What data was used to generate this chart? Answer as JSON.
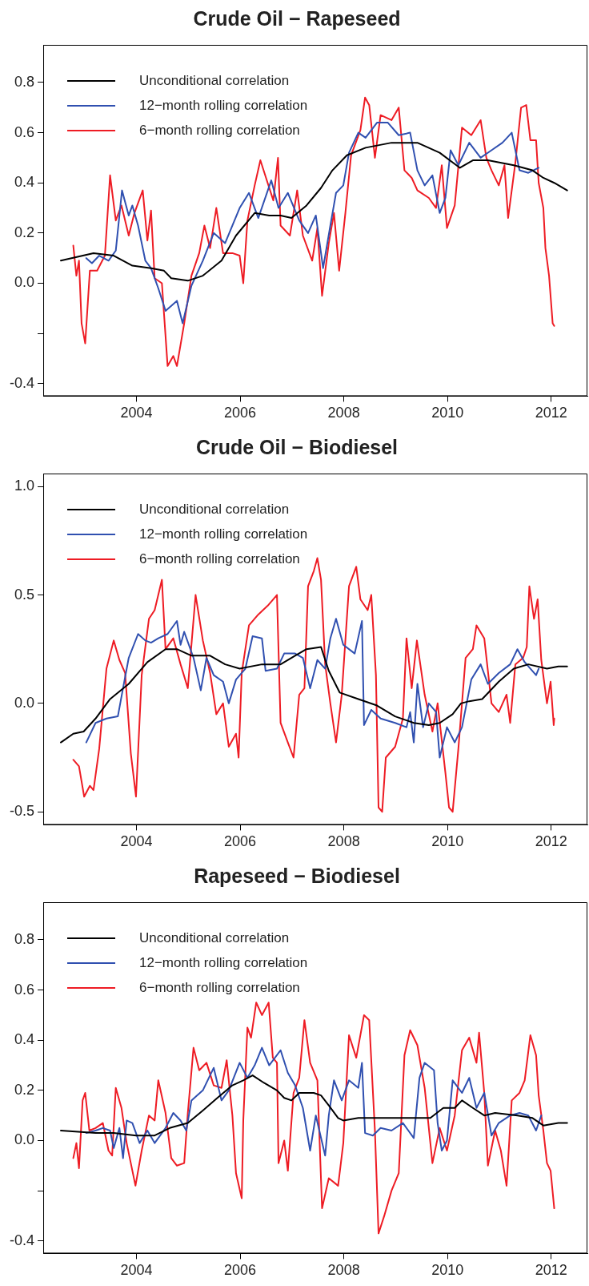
{
  "chart_data": [
    {
      "type": "line",
      "title": "Crude Oil − Rapeseed",
      "xlim": [
        2002.2,
        2012.7
      ],
      "xticks": [
        2004,
        2006,
        2008,
        2010,
        2012
      ],
      "ylim": [
        -0.45,
        0.95
      ],
      "yticks": [
        -0.4,
        {
          "value": -0.2,
          "label": null
        },
        {
          "value": 0,
          "label": "0.0"
        },
        0.2,
        0.4,
        0.6,
        0.8
      ],
      "grid": false,
      "legend": "top left",
      "marker": "none",
      "line_style": "solid",
      "series": [
        {
          "name": "Unconditional correlation",
          "color": "#000000",
          "x": [
            2002.54,
            2003.17,
            2003.56,
            2003.92,
            2004.28,
            2004.53,
            2004.67,
            2004.99,
            2005.28,
            2005.64,
            2005.92,
            2006.28,
            2006.56,
            2006.78,
            2006.99,
            2007.28,
            2007.56,
            2007.78,
            2008.06,
            2008.42,
            2008.92,
            2009.42,
            2009.85,
            2010.24,
            2010.49,
            2010.78,
            2011.28,
            2011.64,
            2011.85,
            2012.06,
            2012.31
          ],
          "values": [
            0.09,
            0.12,
            0.11,
            0.07,
            0.06,
            0.05,
            0.02,
            0.01,
            0.03,
            0.09,
            0.19,
            0.28,
            0.27,
            0.27,
            0.26,
            0.31,
            0.38,
            0.45,
            0.51,
            0.54,
            0.56,
            0.56,
            0.52,
            0.46,
            0.49,
            0.49,
            0.47,
            0.45,
            0.42,
            0.4,
            0.37
          ]
        },
        {
          "name": "12−month rolling correlation",
          "color": "#3050b0",
          "x": [
            2003.03,
            2003.14,
            2003.28,
            2003.46,
            2003.6,
            2003.72,
            2003.85,
            2003.92,
            2004.03,
            2004.17,
            2004.28,
            2004.42,
            2004.56,
            2004.78,
            2004.89,
            2005.06,
            2005.28,
            2005.49,
            2005.71,
            2005.99,
            2006.17,
            2006.35,
            2006.6,
            2006.74,
            2006.92,
            2007.14,
            2007.31,
            2007.46,
            2007.6,
            2007.74,
            2007.85,
            2007.99,
            2008.1,
            2008.28,
            2008.42,
            2008.64,
            2008.85,
            2009.06,
            2009.28,
            2009.42,
            2009.56,
            2009.71,
            2009.85,
            2009.96,
            2010.06,
            2010.21,
            2010.42,
            2010.64,
            2010.85,
            2011.06,
            2011.24,
            2011.39,
            2011.56,
            2011.76
          ],
          "values": [
            0.1,
            0.08,
            0.11,
            0.09,
            0.13,
            0.37,
            0.27,
            0.31,
            0.23,
            0.09,
            0.06,
            -0.02,
            -0.11,
            -0.07,
            -0.16,
            -0.01,
            0.09,
            0.2,
            0.16,
            0.3,
            0.36,
            0.26,
            0.41,
            0.3,
            0.36,
            0.25,
            0.2,
            0.27,
            0.06,
            0.23,
            0.36,
            0.39,
            0.52,
            0.6,
            0.58,
            0.64,
            0.64,
            0.59,
            0.6,
            0.45,
            0.39,
            0.43,
            0.28,
            0.34,
            0.53,
            0.47,
            0.56,
            0.5,
            0.53,
            0.56,
            0.6,
            0.45,
            0.44,
            0.46
          ]
        },
        {
          "name": "6−month rolling correlation",
          "color": "#ee1c24",
          "x": [
            2002.78,
            2002.84,
            2002.89,
            2002.94,
            2003.01,
            2003.1,
            2003.24,
            2003.39,
            2003.49,
            2003.6,
            2003.71,
            2003.85,
            2003.96,
            2004.12,
            2004.21,
            2004.28,
            2004.35,
            2004.49,
            2004.6,
            2004.71,
            2004.78,
            2004.92,
            2005.06,
            2005.21,
            2005.31,
            2005.42,
            2005.54,
            2005.67,
            2005.85,
            2005.99,
            2006.06,
            2006.14,
            2006.28,
            2006.39,
            2006.53,
            2006.64,
            2006.73,
            2006.78,
            2006.96,
            2007.1,
            2007.21,
            2007.39,
            2007.49,
            2007.58,
            2007.71,
            2007.81,
            2007.91,
            2008.03,
            2008.14,
            2008.32,
            2008.41,
            2008.49,
            2008.6,
            2008.71,
            2008.92,
            2009.06,
            2009.17,
            2009.31,
            2009.42,
            2009.64,
            2009.78,
            2009.89,
            2009.99,
            2010.14,
            2010.28,
            2010.46,
            2010.64,
            2010.75,
            2010.85,
            2010.99,
            2011.1,
            2011.17,
            2011.31,
            2011.42,
            2011.52,
            2011.6,
            2011.71,
            2011.76,
            2011.85,
            2011.89,
            2011.96,
            2012.03,
            2012.06
          ],
          "values": [
            0.15,
            0.03,
            0.09,
            -0.16,
            -0.24,
            0.05,
            0.05,
            0.11,
            0.43,
            0.25,
            0.31,
            0.19,
            0.28,
            0.37,
            0.17,
            0.29,
            0.02,
            0.0,
            -0.33,
            -0.29,
            -0.33,
            -0.16,
            0.03,
            0.12,
            0.23,
            0.14,
            0.3,
            0.12,
            0.12,
            0.11,
            0.0,
            0.25,
            0.39,
            0.49,
            0.4,
            0.33,
            0.5,
            0.23,
            0.19,
            0.37,
            0.19,
            0.09,
            0.22,
            -0.05,
            0.16,
            0.28,
            0.05,
            0.28,
            0.51,
            0.61,
            0.74,
            0.71,
            0.5,
            0.67,
            0.65,
            0.7,
            0.45,
            0.42,
            0.37,
            0.34,
            0.3,
            0.47,
            0.22,
            0.31,
            0.62,
            0.59,
            0.65,
            0.5,
            0.45,
            0.39,
            0.47,
            0.26,
            0.48,
            0.7,
            0.71,
            0.57,
            0.57,
            0.4,
            0.3,
            0.14,
            0.03,
            -0.16,
            -0.17
          ]
        }
      ]
    },
    {
      "type": "line",
      "title": "Crude Oil − Biodiesel",
      "xlim": [
        2002.2,
        2012.7
      ],
      "xticks": [
        2004,
        2006,
        2008,
        2010,
        2012
      ],
      "ylim": [
        -0.56,
        1.06
      ],
      "yticks": [
        -0.5,
        {
          "value": 0,
          "label": "0.0"
        },
        0.5,
        {
          "value": 1,
          "label": "1.0"
        }
      ],
      "grid": false,
      "legend": "top left",
      "marker": "none",
      "line_style": "solid",
      "series": [
        {
          "name": "Unconditional correlation",
          "color": "#000000",
          "x": [
            2002.54,
            2002.78,
            2002.98,
            2003.21,
            2003.49,
            2003.85,
            2004.21,
            2004.56,
            2004.78,
            2005.06,
            2005.42,
            2005.71,
            2005.99,
            2006.42,
            2006.78,
            2007.06,
            2007.28,
            2007.56,
            2007.71,
            2007.92,
            2008.28,
            2008.64,
            2008.99,
            2009.35,
            2009.64,
            2009.85,
            2010.1,
            2010.26,
            2010.42,
            2010.67,
            2010.99,
            2011.28,
            2011.56,
            2011.92,
            2012.14,
            2012.31
          ],
          "values": [
            -0.18,
            -0.14,
            -0.13,
            -0.07,
            0.02,
            0.09,
            0.19,
            0.25,
            0.25,
            0.22,
            0.22,
            0.18,
            0.16,
            0.18,
            0.18,
            0.22,
            0.25,
            0.26,
            0.15,
            0.05,
            0.02,
            -0.01,
            -0.06,
            -0.09,
            -0.1,
            -0.09,
            -0.05,
            0.0,
            0.01,
            0.02,
            0.1,
            0.16,
            0.18,
            0.16,
            0.17,
            0.17
          ]
        },
        {
          "name": "12−month rolling correlation",
          "color": "#3050b0",
          "x": [
            2003.03,
            2003.21,
            2003.42,
            2003.64,
            2003.74,
            2003.85,
            2004.03,
            2004.17,
            2004.28,
            2004.42,
            2004.6,
            2004.78,
            2004.85,
            2004.92,
            2005.1,
            2005.24,
            2005.35,
            2005.49,
            2005.67,
            2005.78,
            2005.92,
            2006.1,
            2006.24,
            2006.42,
            2006.49,
            2006.71,
            2006.85,
            2007.06,
            2007.21,
            2007.35,
            2007.49,
            2007.64,
            2007.74,
            2007.85,
            2007.99,
            2008.21,
            2008.35,
            2008.39,
            2008.53,
            2008.71,
            2008.99,
            2009.21,
            2009.28,
            2009.35,
            2009.42,
            2009.53,
            2009.64,
            2009.78,
            2009.85,
            2009.99,
            2010.14,
            2010.28,
            2010.46,
            2010.64,
            2010.78,
            2010.99,
            2011.21,
            2011.35,
            2011.49,
            2011.71,
            2011.76
          ],
          "values": [
            -0.18,
            -0.09,
            -0.07,
            -0.06,
            0.07,
            0.21,
            0.32,
            0.29,
            0.28,
            0.3,
            0.32,
            0.38,
            0.27,
            0.33,
            0.21,
            0.06,
            0.21,
            0.13,
            0.1,
            0.0,
            0.11,
            0.16,
            0.31,
            0.3,
            0.15,
            0.16,
            0.23,
            0.23,
            0.21,
            0.07,
            0.2,
            0.16,
            0.3,
            0.39,
            0.27,
            0.23,
            0.38,
            -0.1,
            -0.03,
            -0.07,
            -0.09,
            -0.11,
            -0.04,
            -0.18,
            0.09,
            -0.11,
            0.0,
            -0.04,
            -0.25,
            -0.11,
            -0.18,
            -0.11,
            0.11,
            0.18,
            0.09,
            0.14,
            0.18,
            0.25,
            0.19,
            0.13,
            0.16
          ]
        },
        {
          "name": "6−month rolling correlation",
          "color": "#ee1c24",
          "x": [
            2002.78,
            2002.89,
            2002.99,
            2003.1,
            2003.17,
            2003.28,
            2003.42,
            2003.56,
            2003.67,
            2003.78,
            2003.89,
            2003.99,
            2004.1,
            2004.24,
            2004.35,
            2004.49,
            2004.56,
            2004.71,
            2004.85,
            2004.99,
            2005.14,
            2005.28,
            2005.42,
            2005.54,
            2005.67,
            2005.78,
            2005.92,
            2005.97,
            2006.03,
            2006.17,
            2006.35,
            2006.53,
            2006.71,
            2006.78,
            2006.92,
            2007.03,
            2007.14,
            2007.24,
            2007.31,
            2007.42,
            2007.49,
            2007.56,
            2007.64,
            2007.74,
            2007.85,
            2007.96,
            2008.1,
            2008.24,
            2008.32,
            2008.46,
            2008.53,
            2008.62,
            2008.67,
            2008.74,
            2008.81,
            2008.99,
            2009.14,
            2009.21,
            2009.31,
            2009.41,
            2009.56,
            2009.71,
            2009.81,
            2009.96,
            2010.03,
            2010.1,
            2010.21,
            2010.35,
            2010.49,
            2010.56,
            2010.71,
            2010.85,
            2010.99,
            2011.14,
            2011.21,
            2011.31,
            2011.46,
            2011.53,
            2011.58,
            2011.67,
            2011.74,
            2011.81,
            2011.92,
            2011.99,
            2012.05,
            2012.06
          ],
          "values": [
            -0.26,
            -0.29,
            -0.43,
            -0.38,
            -0.4,
            -0.21,
            0.16,
            0.29,
            0.2,
            0.14,
            -0.23,
            -0.43,
            0.13,
            0.39,
            0.43,
            0.57,
            0.25,
            0.3,
            0.18,
            0.07,
            0.5,
            0.29,
            0.14,
            -0.05,
            0.0,
            -0.2,
            -0.14,
            -0.25,
            0.14,
            0.36,
            0.41,
            0.45,
            0.5,
            -0.09,
            -0.18,
            -0.25,
            0.04,
            0.07,
            0.54,
            0.61,
            0.67,
            0.57,
            0.18,
            0.0,
            -0.18,
            0.04,
            0.54,
            0.63,
            0.48,
            0.43,
            0.5,
            0.13,
            -0.48,
            -0.5,
            -0.25,
            -0.2,
            -0.07,
            0.3,
            0.07,
            0.29,
            0.04,
            -0.13,
            0.0,
            -0.32,
            -0.48,
            -0.5,
            -0.21,
            0.21,
            0.25,
            0.36,
            0.3,
            0.0,
            -0.04,
            0.04,
            -0.09,
            0.18,
            0.21,
            0.26,
            0.54,
            0.39,
            0.48,
            0.2,
            0.0,
            0.1,
            -0.1,
            -0.07
          ]
        }
      ]
    },
    {
      "type": "line",
      "title": "Rapeseed − Biodiesel",
      "xlim": [
        2002.2,
        2012.7
      ],
      "xticks": [
        2004,
        2006,
        2008,
        2010,
        2012
      ],
      "ylim": [
        -0.45,
        0.95
      ],
      "yticks": [
        -0.4,
        {
          "value": -0.2,
          "label": null
        },
        {
          "value": 0,
          "label": "0.0"
        },
        0.2,
        0.4,
        0.6,
        0.8
      ],
      "grid": false,
      "legend": "top left",
      "marker": "none",
      "line_style": "solid",
      "series": [
        {
          "name": "Unconditional correlation",
          "color": "#000000",
          "x": [
            2002.54,
            2003.21,
            2003.56,
            2003.99,
            2004.35,
            2004.64,
            2004.99,
            2005.28,
            2005.56,
            2005.85,
            2006.06,
            2006.24,
            2006.46,
            2006.71,
            2006.85,
            2006.99,
            2007.14,
            2007.42,
            2007.56,
            2007.71,
            2007.89,
            2007.99,
            2008.28,
            2008.92,
            2009.35,
            2009.67,
            2009.92,
            2010.14,
            2010.28,
            2010.49,
            2010.71,
            2010.92,
            2011.35,
            2011.64,
            2011.85,
            2012.14,
            2012.31
          ],
          "values": [
            0.04,
            0.03,
            0.03,
            0.02,
            0.02,
            0.05,
            0.07,
            0.12,
            0.17,
            0.22,
            0.24,
            0.26,
            0.23,
            0.2,
            0.17,
            0.16,
            0.19,
            0.19,
            0.18,
            0.14,
            0.09,
            0.08,
            0.09,
            0.09,
            0.09,
            0.09,
            0.13,
            0.13,
            0.16,
            0.13,
            0.1,
            0.11,
            0.1,
            0.09,
            0.06,
            0.07,
            0.07
          ]
        },
        {
          "name": "12−month rolling correlation",
          "color": "#3050b0",
          "x": [
            2003.03,
            2003.21,
            2003.35,
            2003.49,
            2003.56,
            2003.67,
            2003.74,
            2003.81,
            2003.92,
            2004.06,
            2004.21,
            2004.35,
            2004.56,
            2004.71,
            2004.85,
            2004.96,
            2005.06,
            2005.28,
            2005.49,
            2005.64,
            2005.78,
            2005.99,
            2006.14,
            2006.28,
            2006.42,
            2006.56,
            2006.78,
            2006.92,
            2007.06,
            2007.21,
            2007.35,
            2007.46,
            2007.64,
            2007.71,
            2007.81,
            2007.96,
            2008.1,
            2008.28,
            2008.35,
            2008.41,
            2008.56,
            2008.71,
            2008.92,
            2009.14,
            2009.35,
            2009.46,
            2009.56,
            2009.74,
            2009.81,
            2009.89,
            2009.99,
            2010.1,
            2010.28,
            2010.42,
            2010.56,
            2010.71,
            2010.85,
            2010.99,
            2011.21,
            2011.39,
            2011.56,
            2011.71,
            2011.81
          ],
          "values": [
            0.03,
            0.04,
            0.05,
            0.04,
            -0.03,
            0.05,
            -0.07,
            0.08,
            0.07,
            -0.01,
            0.04,
            -0.01,
            0.05,
            0.11,
            0.08,
            0.04,
            0.16,
            0.2,
            0.29,
            0.16,
            0.2,
            0.31,
            0.25,
            0.3,
            0.37,
            0.3,
            0.36,
            0.27,
            0.22,
            0.13,
            -0.04,
            0.1,
            -0.06,
            0.1,
            0.24,
            0.16,
            0.24,
            0.21,
            0.31,
            0.03,
            0.02,
            0.05,
            0.04,
            0.07,
            0.01,
            0.25,
            0.31,
            0.28,
            0.07,
            -0.04,
            0.0,
            0.24,
            0.19,
            0.25,
            0.13,
            0.19,
            0.02,
            0.07,
            0.1,
            0.11,
            0.1,
            0.04,
            0.1
          ]
        },
        {
          "name": "6−month rolling correlation",
          "color": "#ee1c24",
          "x": [
            2002.78,
            2002.84,
            2002.89,
            2002.96,
            2003.01,
            2003.09,
            2003.21,
            2003.35,
            2003.46,
            2003.53,
            2003.6,
            2003.71,
            2003.81,
            2003.98,
            2004.1,
            2004.24,
            2004.35,
            2004.42,
            2004.56,
            2004.67,
            2004.78,
            2004.92,
            2004.99,
            2005.1,
            2005.21,
            2005.35,
            2005.49,
            2005.64,
            2005.74,
            2005.85,
            2005.92,
            2006.03,
            2006.06,
            2006.14,
            2006.21,
            2006.31,
            2006.42,
            2006.55,
            2006.63,
            2006.71,
            2006.74,
            2006.85,
            2006.92,
            2007.03,
            2007.14,
            2007.24,
            2007.35,
            2007.49,
            2007.58,
            2007.71,
            2007.89,
            2007.99,
            2008.1,
            2008.24,
            2008.39,
            2008.49,
            2008.6,
            2008.67,
            2008.78,
            2008.92,
            2009.06,
            2009.17,
            2009.28,
            2009.42,
            2009.56,
            2009.71,
            2009.85,
            2009.99,
            2010.14,
            2010.28,
            2010.42,
            2010.56,
            2010.61,
            2010.71,
            2010.78,
            2010.92,
            2011.03,
            2011.14,
            2011.24,
            2011.39,
            2011.49,
            2011.6,
            2011.71,
            2011.76,
            2011.85,
            2011.92,
            2011.99,
            2012.06
          ],
          "values": [
            -0.07,
            -0.01,
            -0.11,
            0.16,
            0.19,
            0.04,
            0.05,
            0.07,
            -0.04,
            -0.06,
            0.21,
            0.13,
            -0.01,
            -0.18,
            -0.04,
            0.1,
            0.08,
            0.24,
            0.11,
            -0.07,
            -0.1,
            -0.09,
            0.11,
            0.37,
            0.28,
            0.31,
            0.22,
            0.21,
            0.32,
            0.1,
            -0.13,
            -0.23,
            0.08,
            0.45,
            0.41,
            0.55,
            0.5,
            0.55,
            0.33,
            0.31,
            -0.09,
            0.0,
            -0.12,
            0.19,
            0.25,
            0.48,
            0.31,
            0.24,
            -0.27,
            -0.15,
            -0.18,
            -0.01,
            0.42,
            0.33,
            0.5,
            0.48,
            0.04,
            -0.37,
            -0.3,
            -0.2,
            -0.13,
            0.34,
            0.44,
            0.38,
            0.21,
            -0.09,
            0.05,
            -0.04,
            0.1,
            0.36,
            0.41,
            0.31,
            0.43,
            0.19,
            -0.1,
            0.04,
            -0.04,
            -0.18,
            0.16,
            0.19,
            0.24,
            0.42,
            0.34,
            0.18,
            0.04,
            -0.09,
            -0.12,
            -0.27
          ]
        }
      ]
    }
  ]
}
